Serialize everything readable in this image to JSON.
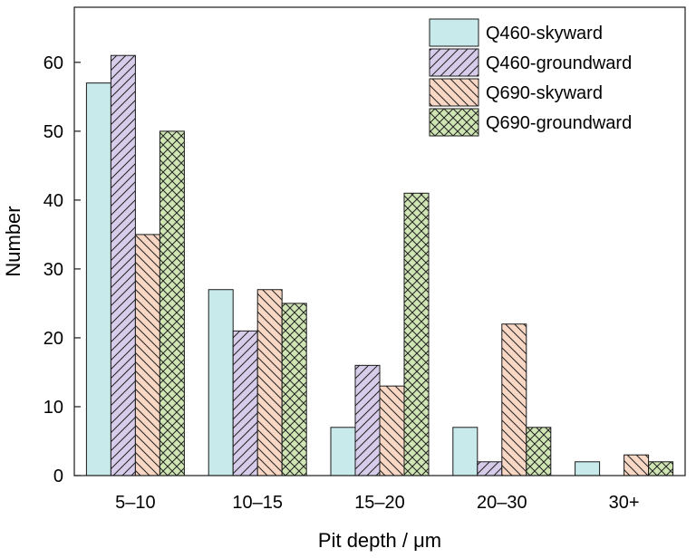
{
  "chart_data": {
    "type": "bar",
    "title": "",
    "xlabel": "Pit depth / μm",
    "ylabel": "Number",
    "categories": [
      "5–10",
      "10–15",
      "15–20",
      "20–30",
      "30+"
    ],
    "ylim": [
      0,
      68
    ],
    "yticks": [
      0,
      10,
      20,
      30,
      40,
      50,
      60
    ],
    "grid": false,
    "legend_position": "top-right",
    "series": [
      {
        "name": "Q460-skyward",
        "values": [
          57,
          27,
          7,
          7,
          2
        ],
        "color": "#c9eaea",
        "pattern": "none"
      },
      {
        "name": "Q460-groundward",
        "values": [
          61,
          21,
          16,
          2,
          0
        ],
        "color": "#d7cdeb",
        "pattern": "forward-diagonal"
      },
      {
        "name": "Q690-skyward",
        "values": [
          35,
          27,
          13,
          22,
          3
        ],
        "color": "#f8d8c4",
        "pattern": "back-diagonal"
      },
      {
        "name": "Q690-groundward",
        "values": [
          50,
          25,
          41,
          7,
          2
        ],
        "color": "#cfe5b4",
        "pattern": "crosshatch"
      }
    ]
  }
}
